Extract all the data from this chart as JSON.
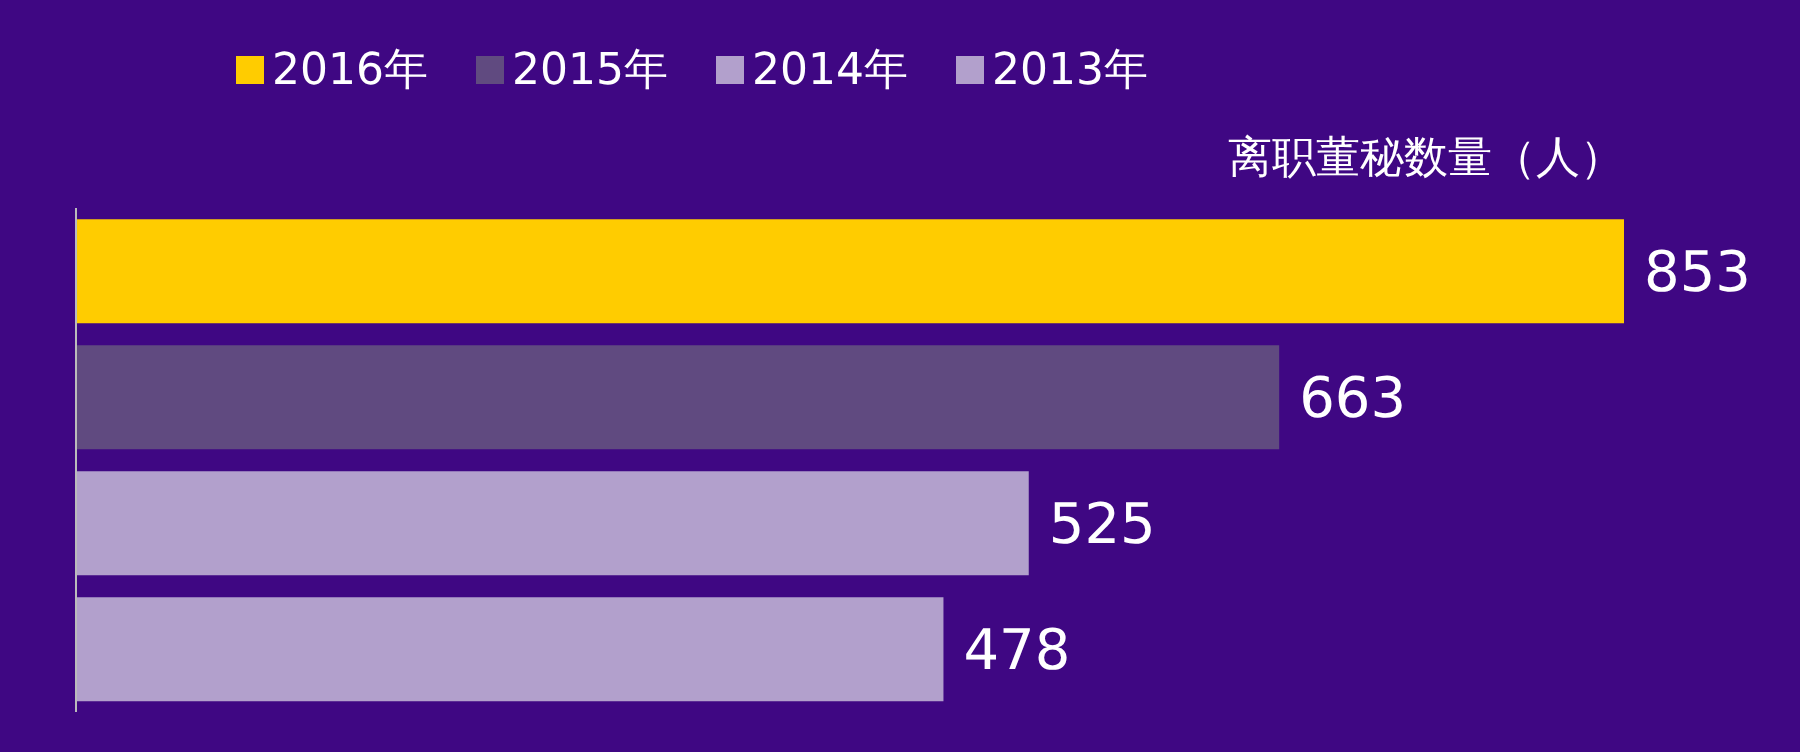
{
  "chart_data": {
    "type": "bar",
    "orientation": "horizontal",
    "stacked": true,
    "xlabel": "离职董秘数量（人）",
    "categories": [
      null,
      null,
      null,
      null
    ],
    "series": [
      {
        "name": "2016年",
        "color": "#ffcc00",
        "values": [
          853,
          null,
          null,
          null
        ]
      },
      {
        "name": "2015年",
        "color": "#604a80",
        "values": [
          null,
          663,
          null,
          null
        ]
      },
      {
        "name": "2014年",
        "color": "#b2a0cc",
        "values": [
          null,
          null,
          525,
          null
        ]
      },
      {
        "name": "2013年",
        "color": "#b2a0cc",
        "values": [
          null,
          null,
          null,
          478
        ]
      }
    ],
    "data_labels": true,
    "legend": "top left",
    "grid": false
  }
}
